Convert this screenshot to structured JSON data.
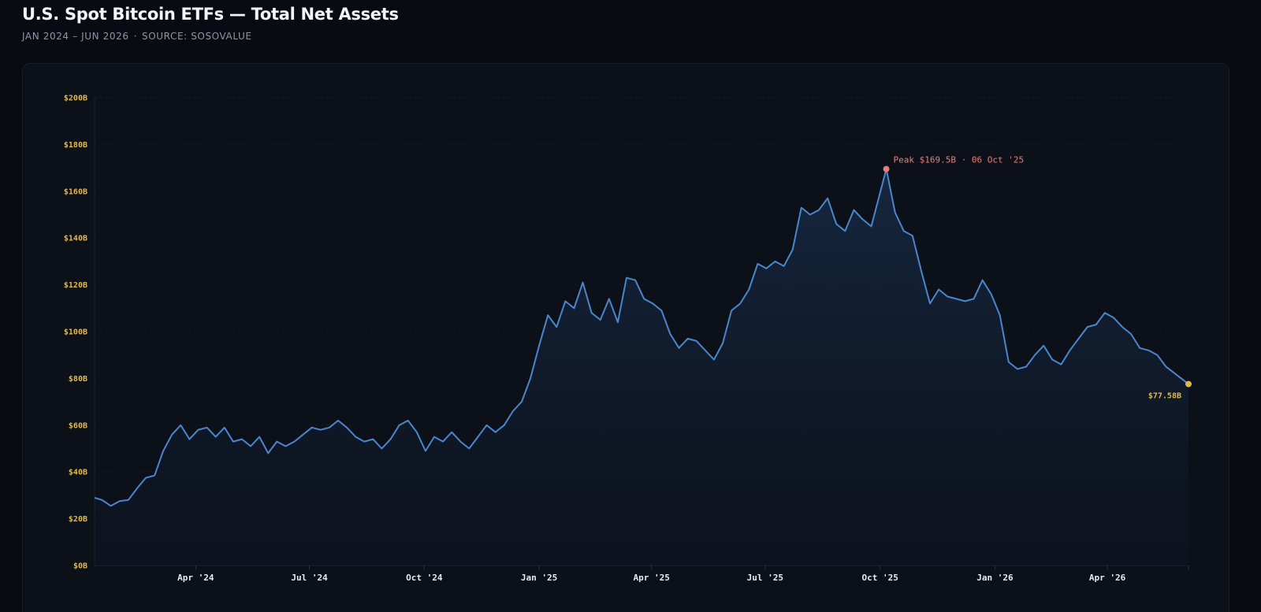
{
  "header": {
    "title": "U.S. Spot Bitcoin ETFs — Total Net Assets",
    "range": "JAN 2024 – JUN 2026",
    "separator": "·",
    "source": "SOURCE: SOSOVALUE"
  },
  "colors": {
    "background": "#080b12",
    "line": "#4a86cc",
    "tick_y": "#e3b94e",
    "peak": "#f07a78",
    "last": "#e3b94e"
  },
  "chart_data": {
    "type": "area",
    "title": "U.S. Spot Bitcoin ETFs — Total Net Assets",
    "ylabel": "",
    "xlabel": "",
    "x_range": [
      "2024-01-11",
      "2026-06-05"
    ],
    "ylim": [
      0,
      200
    ],
    "y_unit": "$B",
    "grid": true,
    "y_ticks": [
      "$0B",
      "$20B",
      "$40B",
      "$60B",
      "$80B",
      "$100B",
      "$120B",
      "$140B",
      "$160B",
      "$180B",
      "$200B"
    ],
    "x_ticks": [
      {
        "date": "2024-04-01",
        "label": "Apr '24"
      },
      {
        "date": "2024-07-01",
        "label": "Jul '24"
      },
      {
        "date": "2024-10-01",
        "label": "Oct '24"
      },
      {
        "date": "2025-01-01",
        "label": "Jan '25"
      },
      {
        "date": "2025-04-01",
        "label": "Apr '25"
      },
      {
        "date": "2025-07-01",
        "label": "Jul '25"
      },
      {
        "date": "2025-10-01",
        "label": "Oct '25"
      },
      {
        "date": "2026-01-01",
        "label": "Jan '26"
      },
      {
        "date": "2026-04-01",
        "label": "Apr '26"
      }
    ],
    "series": [
      {
        "points": [
          [
            "2024-01-11",
            29
          ],
          [
            "2024-01-17",
            28
          ],
          [
            "2024-01-24",
            25.5
          ],
          [
            "2024-01-31",
            27.5
          ],
          [
            "2024-02-07",
            28
          ],
          [
            "2024-02-14",
            33
          ],
          [
            "2024-02-21",
            37.5
          ],
          [
            "2024-02-28",
            38.5
          ],
          [
            "2024-03-06",
            49
          ],
          [
            "2024-03-13",
            56
          ],
          [
            "2024-03-20",
            60
          ],
          [
            "2024-03-27",
            54
          ],
          [
            "2024-04-03",
            58
          ],
          [
            "2024-04-10",
            59
          ],
          [
            "2024-04-17",
            55
          ],
          [
            "2024-04-24",
            59
          ],
          [
            "2024-05-01",
            53
          ],
          [
            "2024-05-08",
            54
          ],
          [
            "2024-05-15",
            51
          ],
          [
            "2024-05-22",
            55
          ],
          [
            "2024-05-29",
            48
          ],
          [
            "2024-06-05",
            53
          ],
          [
            "2024-06-12",
            51
          ],
          [
            "2024-06-19",
            53
          ],
          [
            "2024-06-26",
            56
          ],
          [
            "2024-07-03",
            59
          ],
          [
            "2024-07-10",
            58
          ],
          [
            "2024-07-17",
            59
          ],
          [
            "2024-07-24",
            62
          ],
          [
            "2024-07-31",
            59
          ],
          [
            "2024-08-07",
            55
          ],
          [
            "2024-08-14",
            53
          ],
          [
            "2024-08-21",
            54
          ],
          [
            "2024-08-28",
            50
          ],
          [
            "2024-09-04",
            54
          ],
          [
            "2024-09-11",
            60
          ],
          [
            "2024-09-18",
            62
          ],
          [
            "2024-09-25",
            57
          ],
          [
            "2024-10-02",
            49
          ],
          [
            "2024-10-09",
            55
          ],
          [
            "2024-10-16",
            53
          ],
          [
            "2024-10-23",
            57
          ],
          [
            "2024-10-30",
            53
          ],
          [
            "2024-11-06",
            50
          ],
          [
            "2024-11-13",
            55
          ],
          [
            "2024-11-20",
            60
          ],
          [
            "2024-11-27",
            57
          ],
          [
            "2024-12-04",
            60
          ],
          [
            "2024-12-11",
            66
          ],
          [
            "2024-12-18",
            70
          ],
          [
            "2024-12-25",
            80
          ],
          [
            "2025-01-01",
            94
          ],
          [
            "2025-01-08",
            107
          ],
          [
            "2025-01-15",
            102
          ],
          [
            "2025-01-22",
            113
          ],
          [
            "2025-01-29",
            110
          ],
          [
            "2025-02-05",
            121
          ],
          [
            "2025-02-12",
            108
          ],
          [
            "2025-02-19",
            105
          ],
          [
            "2025-02-26",
            114
          ],
          [
            "2025-03-05",
            104
          ],
          [
            "2025-03-12",
            123
          ],
          [
            "2025-03-19",
            122
          ],
          [
            "2025-03-26",
            114
          ],
          [
            "2025-04-02",
            112
          ],
          [
            "2025-04-09",
            109
          ],
          [
            "2025-04-16",
            99
          ],
          [
            "2025-04-23",
            93
          ],
          [
            "2025-04-30",
            97
          ],
          [
            "2025-05-07",
            96
          ],
          [
            "2025-05-14",
            92
          ],
          [
            "2025-05-21",
            88
          ],
          [
            "2025-05-28",
            95
          ],
          [
            "2025-06-04",
            109
          ],
          [
            "2025-06-11",
            112
          ],
          [
            "2025-06-18",
            118
          ],
          [
            "2025-06-25",
            129
          ],
          [
            "2025-07-02",
            127
          ],
          [
            "2025-07-09",
            130
          ],
          [
            "2025-07-16",
            128
          ],
          [
            "2025-07-23",
            135
          ],
          [
            "2025-07-30",
            153
          ],
          [
            "2025-08-06",
            150
          ],
          [
            "2025-08-13",
            152
          ],
          [
            "2025-08-20",
            157
          ],
          [
            "2025-08-27",
            146
          ],
          [
            "2025-09-03",
            143
          ],
          [
            "2025-09-10",
            152
          ],
          [
            "2025-09-17",
            148
          ],
          [
            "2025-09-24",
            145
          ],
          [
            "2025-10-06",
            169.5
          ],
          [
            "2025-10-13",
            151
          ],
          [
            "2025-10-20",
            143
          ],
          [
            "2025-10-27",
            141
          ],
          [
            "2025-11-03",
            126
          ],
          [
            "2025-11-10",
            112
          ],
          [
            "2025-11-17",
            118
          ],
          [
            "2025-11-24",
            115
          ],
          [
            "2025-12-01",
            114
          ],
          [
            "2025-12-08",
            113
          ],
          [
            "2025-12-15",
            114
          ],
          [
            "2025-12-22",
            122
          ],
          [
            "2025-12-29",
            116
          ],
          [
            "2026-01-05",
            107
          ],
          [
            "2026-01-12",
            87
          ],
          [
            "2026-01-19",
            84
          ],
          [
            "2026-01-26",
            85
          ],
          [
            "2026-02-02",
            90
          ],
          [
            "2026-02-09",
            94
          ],
          [
            "2026-02-16",
            88
          ],
          [
            "2026-02-23",
            86
          ],
          [
            "2026-03-02",
            92
          ],
          [
            "2026-03-09",
            97
          ],
          [
            "2026-03-16",
            102
          ],
          [
            "2026-03-23",
            103
          ],
          [
            "2026-03-30",
            108
          ],
          [
            "2026-04-06",
            106
          ],
          [
            "2026-04-13",
            102
          ],
          [
            "2026-04-20",
            99
          ],
          [
            "2026-04-27",
            93
          ],
          [
            "2026-05-04",
            92
          ],
          [
            "2026-05-11",
            90
          ],
          [
            "2026-05-18",
            85
          ],
          [
            "2026-06-05",
            77.58
          ]
        ]
      }
    ],
    "annotations": {
      "peak": {
        "date": "2025-10-06",
        "value": 169.5,
        "label": "Peak $169.5B · 06 Oct '25"
      },
      "last": {
        "date": "2026-06-05",
        "value": 77.58,
        "label": "$77.58B"
      }
    }
  }
}
